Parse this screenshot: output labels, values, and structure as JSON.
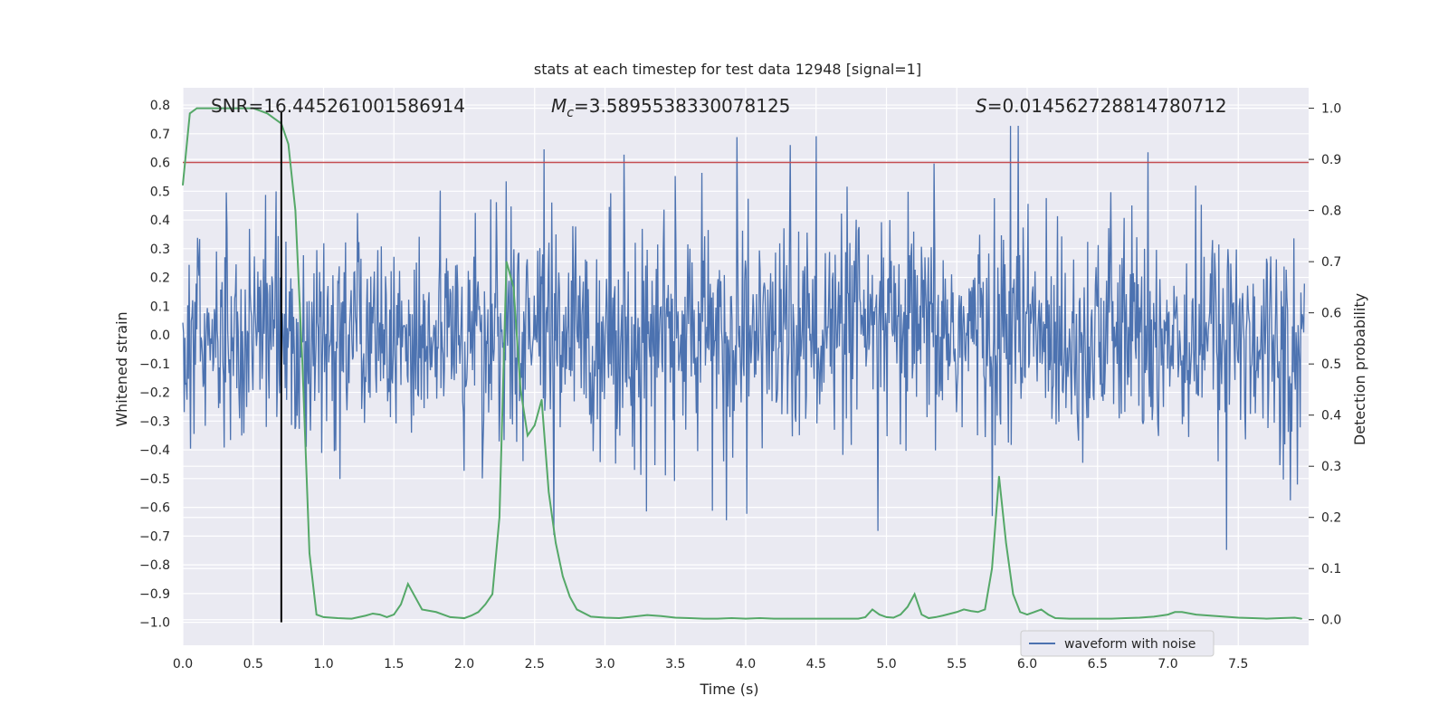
{
  "chart_data": {
    "type": "line",
    "title": "stats at each timestep for test data 12948 [signal=1]",
    "xlabel": "Time (s)",
    "ylabel_left": "Whitened strain",
    "ylabel_right": "Detection probability",
    "xlim": [
      0.0,
      8.0
    ],
    "ylim_left": [
      -1.08,
      0.86
    ],
    "ylim_right": [
      -0.05,
      1.04
    ],
    "x_ticks": [
      "0.0",
      "0.5",
      "1.0",
      "1.5",
      "2.0",
      "2.5",
      "3.0",
      "3.5",
      "4.0",
      "4.5",
      "5.0",
      "5.5",
      "6.0",
      "6.5",
      "7.0",
      "7.5"
    ],
    "y_left_ticks": [
      "0.8",
      "0.7",
      "0.6",
      "0.5",
      "0.4",
      "0.3",
      "0.2",
      "0.1",
      "0.0",
      "-0.1",
      "-0.2",
      "-0.3",
      "-0.4",
      "-0.5",
      "-0.6",
      "-0.7",
      "-0.8",
      "-0.9",
      "-1.0"
    ],
    "y_right_ticks": [
      "1.0",
      "0.9",
      "0.8",
      "0.7",
      "0.6",
      "0.5",
      "0.4",
      "0.3",
      "0.2",
      "0.1",
      "0.0"
    ],
    "grid": true,
    "legend_placement": "lower-right",
    "annotations": {
      "snr_text": "SNR=16.445261001586914",
      "mc_symbol": "M",
      "mc_sub": "c",
      "mc_value": "=3.5895538330078125",
      "s_symbol": "S",
      "s_value": "=0.014562728814780712"
    },
    "threshold_line": {
      "y": 0.6,
      "axis": "left",
      "color": "#c44e52"
    },
    "marker_line": {
      "x": 0.7,
      "y_range": [
        -1.0,
        0.78
      ],
      "color": "#000000"
    },
    "series": [
      {
        "name": "waveform with noise",
        "axis": "left",
        "color": "#4c72b0",
        "description_range": [
          -1.0,
          0.78
        ],
        "envelope": {
          "x": [
            0.0,
            0.5,
            1.0,
            1.5,
            2.0,
            2.5,
            3.0,
            3.5,
            4.0,
            4.5,
            5.0,
            5.5,
            6.0,
            6.5,
            7.0,
            7.5,
            7.95
          ],
          "upper": [
            0.62,
            0.6,
            0.67,
            0.72,
            0.72,
            0.7,
            0.66,
            0.69,
            0.72,
            0.7,
            0.7,
            0.72,
            0.78,
            0.72,
            0.7,
            0.71,
            0.62
          ],
          "lower": [
            -0.66,
            -0.63,
            -0.82,
            -0.63,
            -0.71,
            -1.0,
            -0.7,
            -0.66,
            -0.67,
            -0.75,
            -0.73,
            -0.67,
            -0.69,
            -0.81,
            -0.66,
            -0.79,
            -0.55
          ]
        }
      },
      {
        "name": "",
        "axis": "right",
        "color": "#55a868",
        "x": [
          0.0,
          0.05,
          0.1,
          0.2,
          0.3,
          0.4,
          0.5,
          0.6,
          0.65,
          0.7,
          0.75,
          0.8,
          0.85,
          0.9,
          0.95,
          1.0,
          1.1,
          1.2,
          1.3,
          1.35,
          1.4,
          1.45,
          1.5,
          1.55,
          1.6,
          1.7,
          1.8,
          1.9,
          2.0,
          2.05,
          2.1,
          2.15,
          2.2,
          2.25,
          2.3,
          2.35,
          2.4,
          2.45,
          2.5,
          2.55,
          2.6,
          2.65,
          2.7,
          2.75,
          2.8,
          2.9,
          3.0,
          3.1,
          3.2,
          3.3,
          3.4,
          3.5,
          3.6,
          3.7,
          3.8,
          3.9,
          4.0,
          4.1,
          4.2,
          4.3,
          4.4,
          4.5,
          4.6,
          4.7,
          4.8,
          4.85,
          4.9,
          4.95,
          5.0,
          5.05,
          5.1,
          5.15,
          5.2,
          5.25,
          5.3,
          5.35,
          5.4,
          5.5,
          5.55,
          5.6,
          5.65,
          5.7,
          5.75,
          5.8,
          5.85,
          5.9,
          5.95,
          6.0,
          6.05,
          6.1,
          6.15,
          6.2,
          6.3,
          6.4,
          6.5,
          6.6,
          6.7,
          6.8,
          6.9,
          7.0,
          7.05,
          7.1,
          7.2,
          7.3,
          7.4,
          7.5,
          7.6,
          7.7,
          7.8,
          7.9,
          7.95
        ],
        "values": [
          0.85,
          0.99,
          1.0,
          1.0,
          1.0,
          1.0,
          1.0,
          0.99,
          0.98,
          0.97,
          0.93,
          0.8,
          0.5,
          0.13,
          0.01,
          0.005,
          0.003,
          0.002,
          0.008,
          0.012,
          0.01,
          0.005,
          0.01,
          0.03,
          0.07,
          0.02,
          0.015,
          0.005,
          0.003,
          0.008,
          0.015,
          0.03,
          0.05,
          0.2,
          0.7,
          0.65,
          0.45,
          0.36,
          0.38,
          0.43,
          0.25,
          0.15,
          0.085,
          0.045,
          0.02,
          0.006,
          0.004,
          0.003,
          0.006,
          0.009,
          0.007,
          0.004,
          0.003,
          0.002,
          0.002,
          0.003,
          0.002,
          0.003,
          0.002,
          0.002,
          0.002,
          0.002,
          0.002,
          0.002,
          0.002,
          0.005,
          0.02,
          0.01,
          0.005,
          0.004,
          0.01,
          0.025,
          0.05,
          0.01,
          0.003,
          0.005,
          0.008,
          0.015,
          0.02,
          0.017,
          0.015,
          0.02,
          0.1,
          0.28,
          0.15,
          0.05,
          0.015,
          0.01,
          0.015,
          0.02,
          0.01,
          0.003,
          0.002,
          0.002,
          0.002,
          0.002,
          0.003,
          0.004,
          0.006,
          0.01,
          0.015,
          0.015,
          0.01,
          0.008,
          0.006,
          0.004,
          0.003,
          0.002,
          0.003,
          0.004,
          0.002
        ]
      }
    ]
  },
  "colors": {
    "plot_background": "#eaeaf2",
    "grid": "#ffffff",
    "waveform": "#4c72b0",
    "probability": "#55a868",
    "threshold": "#c44e52",
    "marker": "#000000"
  }
}
